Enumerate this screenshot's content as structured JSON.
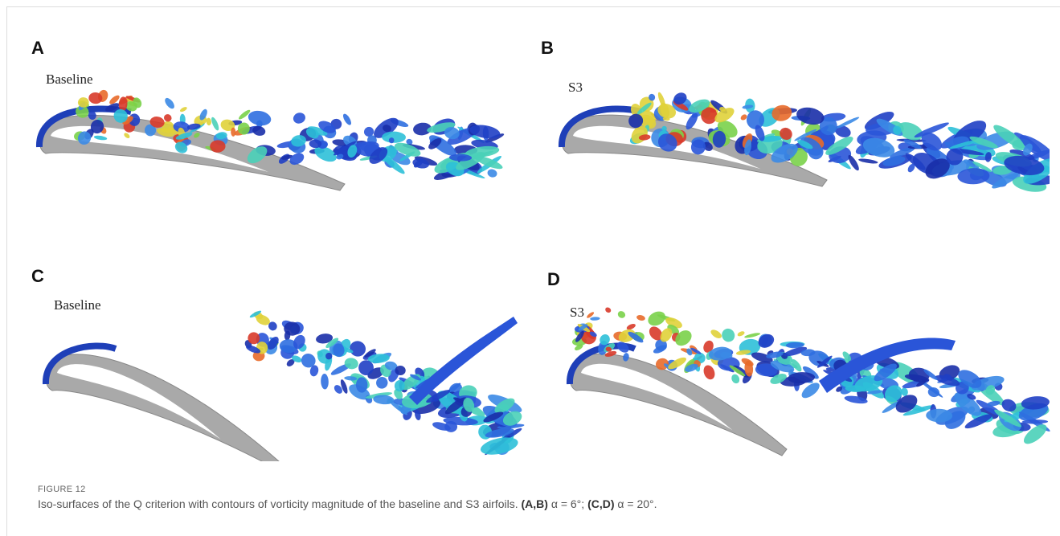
{
  "panels": [
    {
      "letter": "A",
      "label": "Baseline"
    },
    {
      "letter": "B",
      "label": "S3"
    },
    {
      "letter": "C",
      "label": "Baseline"
    },
    {
      "letter": "D",
      "label": "S3"
    }
  ],
  "figure": {
    "number": "FIGURE 12",
    "caption": {
      "text": "Iso-surfaces of the Q criterion with contours of vorticity magnitude of the baseline and S3 airfoils. ",
      "part1_bold": "(A,B)",
      "part1": " α = 6°; ",
      "part2_bold": "(C,D)",
      "part2": " α =  20°."
    }
  }
}
